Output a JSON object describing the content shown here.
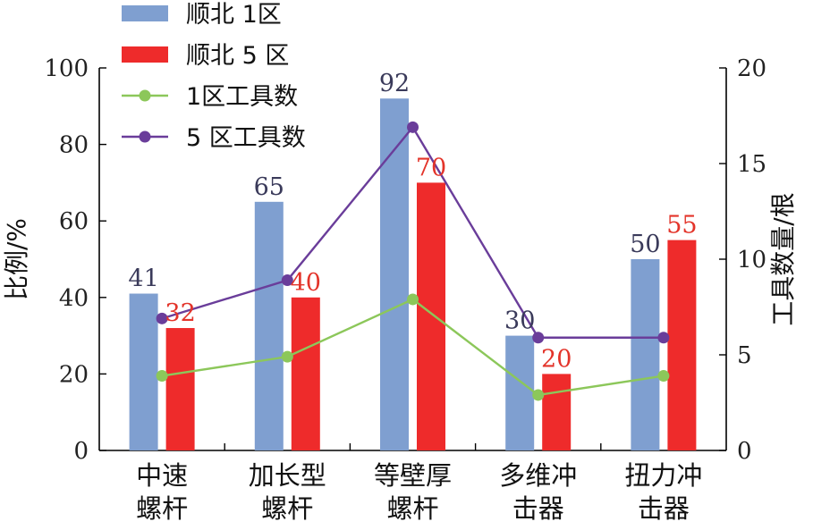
{
  "chart_data": {
    "type": "bar+line",
    "categories": [
      [
        "中速",
        "螺杆"
      ],
      [
        "加长型",
        "螺杆"
      ],
      [
        "等壁厚",
        "螺杆"
      ],
      [
        "多维冲",
        "击器"
      ],
      [
        "扭力冲",
        "击器"
      ]
    ],
    "left_axis": {
      "title": "比例/%",
      "ylim": [
        0,
        100
      ],
      "ticks": [
        0,
        20,
        40,
        60,
        80,
        100
      ]
    },
    "right_axis": {
      "title": "工具数量/根",
      "ylim": [
        0,
        20
      ],
      "ticks": [
        0,
        5,
        10,
        15,
        20
      ]
    },
    "series": [
      {
        "name": "顺北 1区",
        "kind": "bar",
        "axis": "left",
        "color": "#7f9fd0",
        "label_color": "#3a3a5a",
        "values": [
          41,
          65,
          92,
          30,
          50
        ]
      },
      {
        "name": "顺北 5 区",
        "kind": "bar",
        "axis": "left",
        "color": "#ee2b2b",
        "label_color": "#e3342a",
        "values": [
          32,
          40,
          70,
          20,
          55
        ]
      },
      {
        "name": "1区工具数",
        "kind": "line",
        "axis": "right",
        "color": "#8cc75a",
        "values": [
          3.9,
          4.9,
          7.9,
          2.9,
          3.9
        ]
      },
      {
        "name": "5 区工具数",
        "kind": "line",
        "axis": "right",
        "color": "#6a3d9a",
        "values": [
          6.9,
          8.9,
          16.9,
          5.9,
          5.9
        ]
      }
    ],
    "legend_position": "top-left",
    "grid": false
  }
}
